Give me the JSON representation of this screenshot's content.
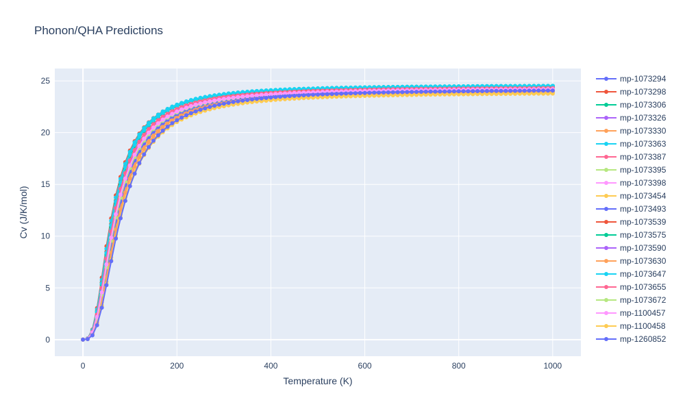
{
  "chart_data": {
    "type": "line",
    "title": "Phonon/QHA Predictions",
    "xlabel": "Temperature (K)",
    "ylabel": "Cv (J/K/mol)",
    "xlim": [
      -60,
      1060
    ],
    "ylim": [
      -1.6,
      26.2
    ],
    "x_ticks": [
      0,
      200,
      400,
      600,
      800,
      1000
    ],
    "y_ticks": [
      0,
      5,
      10,
      15,
      20,
      25
    ],
    "x_step": 10,
    "x_max": 1000,
    "grid": true,
    "legend_position": "right",
    "background_color": "#e5ecf6",
    "series": [
      {
        "name": "mp-1073294",
        "color": "#636efa",
        "theta": 280,
        "cv_max": 24.3
      },
      {
        "name": "mp-1073298",
        "color": "#ef553b",
        "theta": 250,
        "cv_max": 24.5
      },
      {
        "name": "mp-1073306",
        "color": "#00cc96",
        "theta": 260,
        "cv_max": 24.6
      },
      {
        "name": "mp-1073326",
        "color": "#ab63fa",
        "theta": 275,
        "cv_max": 24.3
      },
      {
        "name": "mp-1073330",
        "color": "#ffa15a",
        "theta": 300,
        "cv_max": 24.1
      },
      {
        "name": "mp-1073363",
        "color": "#19d3f3",
        "theta": 255,
        "cv_max": 24.6
      },
      {
        "name": "mp-1073387",
        "color": "#ff6692",
        "theta": 270,
        "cv_max": 24.4
      },
      {
        "name": "mp-1073395",
        "color": "#b6e880",
        "theta": 290,
        "cv_max": 24.3
      },
      {
        "name": "mp-1073398",
        "color": "#ff97ff",
        "theta": 285,
        "cv_max": 24.3
      },
      {
        "name": "mp-1073454",
        "color": "#fecb52",
        "theta": 320,
        "cv_max": 24.0
      },
      {
        "name": "mp-1073493",
        "color": "#636efa",
        "theta": 295,
        "cv_max": 24.2
      },
      {
        "name": "mp-1073539",
        "color": "#ef553b",
        "theta": 260,
        "cv_max": 24.5
      },
      {
        "name": "mp-1073575",
        "color": "#00cc96",
        "theta": 265,
        "cv_max": 24.6
      },
      {
        "name": "mp-1073590",
        "color": "#ab63fa",
        "theta": 280,
        "cv_max": 24.3
      },
      {
        "name": "mp-1073630",
        "color": "#ffa15a",
        "theta": 310,
        "cv_max": 24.1
      },
      {
        "name": "mp-1073647",
        "color": "#19d3f3",
        "theta": 262,
        "cv_max": 24.6
      },
      {
        "name": "mp-1073655",
        "color": "#ff6692",
        "theta": 272,
        "cv_max": 24.4
      },
      {
        "name": "mp-1073672",
        "color": "#b6e880",
        "theta": 288,
        "cv_max": 24.3
      },
      {
        "name": "mp-1100457",
        "color": "#ff97ff",
        "theta": 282,
        "cv_max": 24.3
      },
      {
        "name": "mp-1100458",
        "color": "#fecb52",
        "theta": 325,
        "cv_max": 23.9
      },
      {
        "name": "mp-1260852",
        "color": "#636efa",
        "theta": 330,
        "cv_max": 24.2
      }
    ]
  }
}
